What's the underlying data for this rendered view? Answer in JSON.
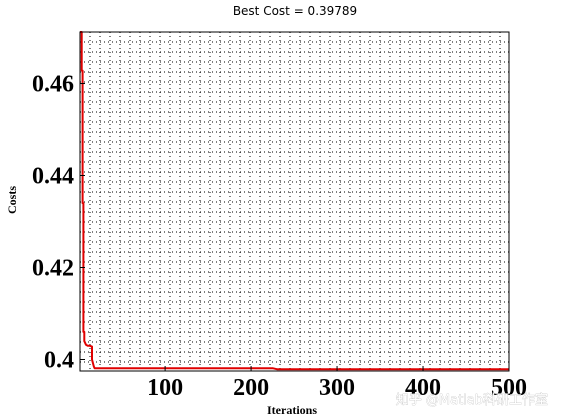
{
  "chart_data": {
    "type": "line",
    "title": "Best Cost = 0.39789",
    "xlabel": "Iterations",
    "ylabel": "Costs",
    "xlim": [
      1,
      500
    ],
    "ylim": [
      0.3975,
      0.4712
    ],
    "x_ticks": [
      100,
      200,
      300,
      400,
      500
    ],
    "x_tick_labels": [
      "100",
      "200",
      "300",
      "400",
      "500"
    ],
    "y_ticks": [
      0.4,
      0.42,
      0.44,
      0.46
    ],
    "y_tick_labels": [
      "0.4",
      "0.42",
      "0.44",
      "0.46"
    ],
    "grid": "dotted",
    "series": [
      {
        "color": "#e00000",
        "x": [
          1,
          2,
          3,
          3,
          4,
          4,
          5,
          5,
          6,
          6,
          8,
          10,
          12,
          15,
          15,
          17,
          18,
          20,
          225,
          230,
          500
        ],
        "y": [
          0.4712,
          0.4712,
          0.4712,
          0.4628,
          0.4628,
          0.434,
          0.434,
          0.406,
          0.406,
          0.404,
          0.4032,
          0.403,
          0.403,
          0.4028,
          0.4,
          0.3985,
          0.3981,
          0.3981,
          0.3981,
          0.3979,
          0.3979
        ]
      }
    ]
  },
  "watermark": "知乎 @Matlab科研工作室"
}
